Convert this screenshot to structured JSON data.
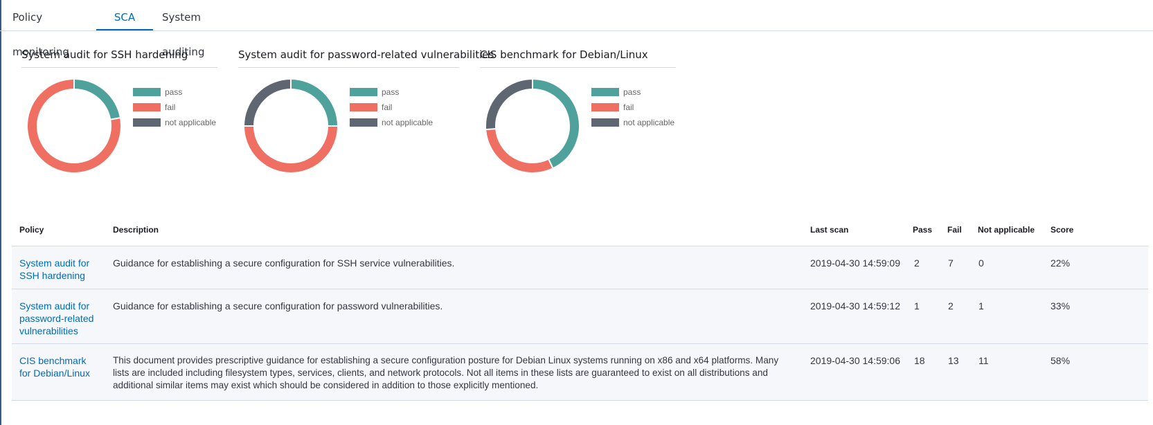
{
  "tabs": [
    {
      "label": "Policy monitoring",
      "active": false
    },
    {
      "label": "SCA",
      "active": true
    },
    {
      "label": "System auditing",
      "active": false
    }
  ],
  "colors": {
    "pass": "#4fa29b",
    "fail": "#ef6f62",
    "not_applicable": "#5e6671",
    "accent": "#006bb8"
  },
  "legend": {
    "pass": "pass",
    "fail": "fail",
    "not_applicable": "not applicable"
  },
  "chart_data": [
    {
      "type": "pie",
      "title": "System audit for SSH hardening",
      "categories": [
        "pass",
        "fail",
        "not applicable"
      ],
      "values": [
        2,
        7,
        0
      ]
    },
    {
      "type": "pie",
      "title": "System audit for password-related vulnerabilities",
      "categories": [
        "pass",
        "fail",
        "not applicable"
      ],
      "values": [
        1,
        2,
        1
      ]
    },
    {
      "type": "pie",
      "title": "CIS benchmark for Debian/Linux",
      "categories": [
        "pass",
        "fail",
        "not applicable"
      ],
      "values": [
        18,
        13,
        11
      ]
    }
  ],
  "table": {
    "headers": {
      "policy": "Policy",
      "description": "Description",
      "last_scan": "Last scan",
      "pass": "Pass",
      "fail": "Fail",
      "not_applicable": "Not applicable",
      "score": "Score"
    },
    "rows": [
      {
        "policy": [
          "System audit for",
          "SSH hardening"
        ],
        "description": [
          "Guidance for establishing a secure configuration for SSH service vulnerabilities."
        ],
        "last_scan": "2019-04-30 14:59:09",
        "pass": "2",
        "fail": "7",
        "not_applicable": "0",
        "score": "22%"
      },
      {
        "policy": [
          "System audit for",
          "password-related",
          "vulnerabilities"
        ],
        "description": [
          "Guidance for establishing a secure configuration for password vulnerabilities."
        ],
        "last_scan": "2019-04-30 14:59:12",
        "pass": "1",
        "fail": "2",
        "not_applicable": "1",
        "score": "33%"
      },
      {
        "policy": [
          "CIS benchmark",
          "for Debian/Linux"
        ],
        "description": [
          "This document provides prescriptive guidance for establishing a secure configuration posture for Debian Linux systems running on x86 and x64 platforms. Many",
          "lists are included including filesystem types, services, clients, and network protocols. Not all items in these lists are guaranteed to exist on all distributions and",
          "additional similar items may exist which should be considered in addition to those explicitly mentioned."
        ],
        "last_scan": "2019-04-30 14:59:06",
        "pass": "18",
        "fail": "13",
        "not_applicable": "11",
        "score": "58%"
      }
    ]
  }
}
